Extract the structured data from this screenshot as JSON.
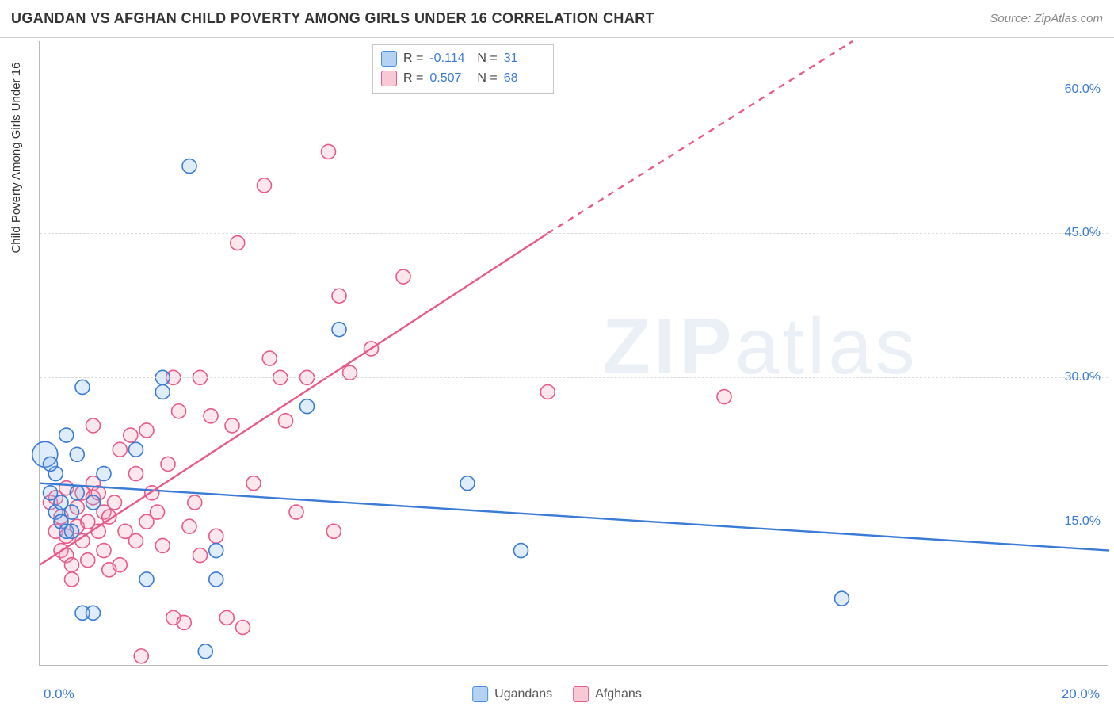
{
  "header": {
    "title": "UGANDAN VS AFGHAN CHILD POVERTY AMONG GIRLS UNDER 16 CORRELATION CHART",
    "source_label": "Source:",
    "source_name": "ZipAtlas.com"
  },
  "chart": {
    "type": "scatter",
    "y_axis_title": "Child Poverty Among Girls Under 16",
    "xlim": [
      0.0,
      20.0
    ],
    "ylim": [
      0.0,
      65.0
    ],
    "x_ticks": [
      {
        "value": 0.0,
        "label": "0.0%"
      },
      {
        "value": 20.0,
        "label": "20.0%"
      }
    ],
    "y_ticks": [
      {
        "value": 15.0,
        "label": "15.0%"
      },
      {
        "value": 30.0,
        "label": "30.0%"
      },
      {
        "value": 45.0,
        "label": "45.0%"
      },
      {
        "value": 60.0,
        "label": "60.0%"
      }
    ],
    "grid_color": "#dcdcdc",
    "axis_color": "#b8b8b8",
    "background_color": "#ffffff",
    "marker_radius": 9,
    "marker_stroke_width": 1.6,
    "marker_fill_opacity": 0.25,
    "trend_line_width": 2.4
  },
  "legend_top": {
    "rows": [
      {
        "swatch_fill": "#b6d2f2",
        "swatch_stroke": "#4a90e2",
        "r_label": "R =",
        "r_value": "-0.114",
        "n_label": "N =",
        "n_value": "31"
      },
      {
        "swatch_fill": "#f7c8d6",
        "swatch_stroke": "#e85a8a",
        "r_label": "R =",
        "r_value": "0.507",
        "n_label": "N =",
        "n_value": "68"
      }
    ]
  },
  "legend_bottom": {
    "items": [
      {
        "swatch_fill": "#b6d2f2",
        "swatch_stroke": "#4a90e2",
        "label": "Ugandans"
      },
      {
        "swatch_fill": "#f7c8d6",
        "swatch_stroke": "#e85a8a",
        "label": "Afghans"
      }
    ]
  },
  "series": {
    "ugandans": {
      "color_stroke": "#3a7bd5",
      "color_fill": "#7fb2ec",
      "trend": {
        "x1": 0.0,
        "y1": 19.0,
        "x2": 20.0,
        "y2": 12.0
      },
      "points": [
        {
          "x": 0.1,
          "y": 22.0,
          "r": 16
        },
        {
          "x": 0.2,
          "y": 18.0,
          "r": 9
        },
        {
          "x": 0.3,
          "y": 20.0,
          "r": 9
        },
        {
          "x": 0.3,
          "y": 16.0,
          "r": 9
        },
        {
          "x": 0.4,
          "y": 15.0,
          "r": 9
        },
        {
          "x": 0.4,
          "y": 17.0,
          "r": 9
        },
        {
          "x": 0.5,
          "y": 14.0,
          "r": 9
        },
        {
          "x": 0.5,
          "y": 24.0,
          "r": 9
        },
        {
          "x": 0.6,
          "y": 16.0,
          "r": 9
        },
        {
          "x": 0.7,
          "y": 22.0,
          "r": 9
        },
        {
          "x": 0.7,
          "y": 18.0,
          "r": 9
        },
        {
          "x": 0.8,
          "y": 29.0,
          "r": 9
        },
        {
          "x": 0.8,
          "y": 5.5,
          "r": 9
        },
        {
          "x": 1.0,
          "y": 5.5,
          "r": 9
        },
        {
          "x": 1.2,
          "y": 20.0,
          "r": 9
        },
        {
          "x": 1.8,
          "y": 22.5,
          "r": 9
        },
        {
          "x": 2.0,
          "y": 9.0,
          "r": 9
        },
        {
          "x": 2.3,
          "y": 30.0,
          "r": 9
        },
        {
          "x": 2.3,
          "y": 28.5,
          "r": 9
        },
        {
          "x": 2.8,
          "y": 52.0,
          "r": 9
        },
        {
          "x": 3.1,
          "y": 1.5,
          "r": 9
        },
        {
          "x": 3.3,
          "y": 12.0,
          "r": 9
        },
        {
          "x": 3.3,
          "y": 9.0,
          "r": 9
        },
        {
          "x": 5.0,
          "y": 27.0,
          "r": 9
        },
        {
          "x": 5.6,
          "y": 35.0,
          "r": 9
        },
        {
          "x": 8.0,
          "y": 19.0,
          "r": 9
        },
        {
          "x": 9.0,
          "y": 12.0,
          "r": 9
        },
        {
          "x": 15.0,
          "y": 7.0,
          "r": 9
        },
        {
          "x": 0.2,
          "y": 21.0,
          "r": 9
        },
        {
          "x": 0.6,
          "y": 14.0,
          "r": 9
        },
        {
          "x": 1.0,
          "y": 17.0,
          "r": 9
        }
      ]
    },
    "afghans": {
      "color_stroke": "#e85a8a",
      "color_fill": "#f29fb8",
      "trend_solid": {
        "x1": 0.0,
        "y1": 10.5,
        "x2": 9.5,
        "y2": 45.0
      },
      "trend_dash": {
        "x1": 9.5,
        "y1": 45.0,
        "x2": 15.2,
        "y2": 65.0
      },
      "points": [
        {
          "x": 0.2,
          "y": 17.0,
          "r": 9
        },
        {
          "x": 0.3,
          "y": 17.5,
          "r": 9
        },
        {
          "x": 0.3,
          "y": 14.0,
          "r": 9
        },
        {
          "x": 0.4,
          "y": 15.5,
          "r": 9
        },
        {
          "x": 0.4,
          "y": 12.0,
          "r": 9
        },
        {
          "x": 0.5,
          "y": 11.5,
          "r": 9
        },
        {
          "x": 0.5,
          "y": 18.5,
          "r": 9
        },
        {
          "x": 0.6,
          "y": 9.0,
          "r": 9
        },
        {
          "x": 0.6,
          "y": 10.5,
          "r": 9
        },
        {
          "x": 0.7,
          "y": 14.5,
          "r": 9
        },
        {
          "x": 0.7,
          "y": 16.5,
          "r": 9
        },
        {
          "x": 0.8,
          "y": 13.0,
          "r": 9
        },
        {
          "x": 0.8,
          "y": 18.0,
          "r": 9
        },
        {
          "x": 0.9,
          "y": 15.0,
          "r": 9
        },
        {
          "x": 0.9,
          "y": 11.0,
          "r": 9
        },
        {
          "x": 1.0,
          "y": 17.5,
          "r": 9
        },
        {
          "x": 1.0,
          "y": 19.0,
          "r": 9
        },
        {
          "x": 1.0,
          "y": 25.0,
          "r": 9
        },
        {
          "x": 1.1,
          "y": 18.0,
          "r": 9
        },
        {
          "x": 1.1,
          "y": 14.0,
          "r": 9
        },
        {
          "x": 1.2,
          "y": 16.0,
          "r": 9
        },
        {
          "x": 1.2,
          "y": 12.0,
          "r": 9
        },
        {
          "x": 1.3,
          "y": 10.0,
          "r": 9
        },
        {
          "x": 1.3,
          "y": 15.5,
          "r": 9
        },
        {
          "x": 1.5,
          "y": 22.5,
          "r": 9
        },
        {
          "x": 1.5,
          "y": 10.5,
          "r": 9
        },
        {
          "x": 1.6,
          "y": 14.0,
          "r": 9
        },
        {
          "x": 1.7,
          "y": 24.0,
          "r": 9
        },
        {
          "x": 1.8,
          "y": 20.0,
          "r": 9
        },
        {
          "x": 1.8,
          "y": 13.0,
          "r": 9
        },
        {
          "x": 1.9,
          "y": 1.0,
          "r": 9
        },
        {
          "x": 2.0,
          "y": 15.0,
          "r": 9
        },
        {
          "x": 2.0,
          "y": 24.5,
          "r": 9
        },
        {
          "x": 2.1,
          "y": 18.0,
          "r": 9
        },
        {
          "x": 2.2,
          "y": 16.0,
          "r": 9
        },
        {
          "x": 2.3,
          "y": 12.5,
          "r": 9
        },
        {
          "x": 2.5,
          "y": 30.0,
          "r": 9
        },
        {
          "x": 2.5,
          "y": 5.0,
          "r": 9
        },
        {
          "x": 2.6,
          "y": 26.5,
          "r": 9
        },
        {
          "x": 2.7,
          "y": 4.5,
          "r": 9
        },
        {
          "x": 2.8,
          "y": 14.5,
          "r": 9
        },
        {
          "x": 2.9,
          "y": 17.0,
          "r": 9
        },
        {
          "x": 3.0,
          "y": 30.0,
          "r": 9
        },
        {
          "x": 3.0,
          "y": 11.5,
          "r": 9
        },
        {
          "x": 3.2,
          "y": 26.0,
          "r": 9
        },
        {
          "x": 3.3,
          "y": 13.5,
          "r": 9
        },
        {
          "x": 3.5,
          "y": 5.0,
          "r": 9
        },
        {
          "x": 3.6,
          "y": 25.0,
          "r": 9
        },
        {
          "x": 3.7,
          "y": 44.0,
          "r": 9
        },
        {
          "x": 3.8,
          "y": 4.0,
          "r": 9
        },
        {
          "x": 4.0,
          "y": 19.0,
          "r": 9
        },
        {
          "x": 4.2,
          "y": 50.0,
          "r": 9
        },
        {
          "x": 4.3,
          "y": 32.0,
          "r": 9
        },
        {
          "x": 4.5,
          "y": 30.0,
          "r": 9
        },
        {
          "x": 4.6,
          "y": 25.5,
          "r": 9
        },
        {
          "x": 4.8,
          "y": 16.0,
          "r": 9
        },
        {
          "x": 5.0,
          "y": 30.0,
          "r": 9
        },
        {
          "x": 5.4,
          "y": 53.5,
          "r": 9
        },
        {
          "x": 5.5,
          "y": 14.0,
          "r": 9
        },
        {
          "x": 5.6,
          "y": 38.5,
          "r": 9
        },
        {
          "x": 5.8,
          "y": 30.5,
          "r": 9
        },
        {
          "x": 6.2,
          "y": 33.0,
          "r": 9
        },
        {
          "x": 6.8,
          "y": 40.5,
          "r": 9
        },
        {
          "x": 9.5,
          "y": 28.5,
          "r": 9
        },
        {
          "x": 12.8,
          "y": 28.0,
          "r": 9
        },
        {
          "x": 0.5,
          "y": 13.5,
          "r": 9
        },
        {
          "x": 1.4,
          "y": 17.0,
          "r": 9
        },
        {
          "x": 2.4,
          "y": 21.0,
          "r": 9
        }
      ]
    }
  },
  "watermark": {
    "part1": "ZIP",
    "part2": "atlas"
  }
}
